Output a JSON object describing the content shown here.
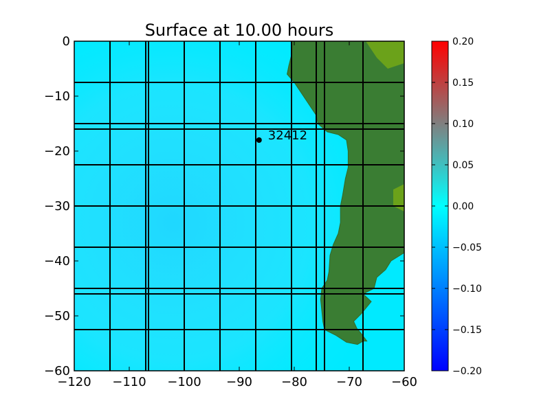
{
  "chart_data": {
    "type": "heatmap",
    "title": "Surface at 10.00 hours",
    "xlabel": "",
    "ylabel": "",
    "xlim": [
      -120,
      -60
    ],
    "ylim": [
      -60,
      0
    ],
    "x_ticks": [
      -120,
      -110,
      -100,
      -90,
      -80,
      -70,
      -60
    ],
    "y_ticks": [
      0,
      -10,
      -20,
      -30,
      -40,
      -50,
      -60
    ],
    "x_tick_labels": [
      "−120",
      "−110",
      "−100",
      "−90",
      "−80",
      "−70",
      "−60"
    ],
    "y_tick_labels": [
      "0",
      "−10",
      "−20",
      "−30",
      "−40",
      "−50",
      "−60"
    ],
    "colorbar": {
      "range": [
        -0.2,
        0.2
      ],
      "ticks": [
        0.2,
        0.15,
        0.1,
        0.05,
        0.0,
        -0.05,
        -0.1,
        -0.15,
        -0.2
      ],
      "tick_labels": [
        "0.20",
        "0.15",
        "0.10",
        "0.05",
        "0.00",
        "−0.05",
        "−0.10",
        "−0.15",
        "−0.20"
      ],
      "colors": [
        "#0000ff",
        "#00ffff",
        "#ff0000"
      ]
    },
    "colors": {
      "ocean": "#00eaff",
      "land": "#3a7d33",
      "highland": "#6ba21a",
      "grid": "#000000"
    },
    "grid_lines_x": [
      -113.5,
      -107,
      -106.5,
      -100,
      -93.5,
      -87,
      -80.5,
      -76,
      -74.5,
      -67.5
    ],
    "grid_lines_y": [
      -7.5,
      -15,
      -16,
      -22.5,
      -30,
      -37.5,
      -45,
      -46,
      -52.5
    ],
    "gauge": {
      "label": "32412",
      "x": -86.4,
      "y": -18.0
    },
    "coastline": [
      [
        -80.5,
        0
      ],
      [
        -80.5,
        -2.5
      ],
      [
        -81,
        -4.5
      ],
      [
        -81.3,
        -6
      ],
      [
        -80,
        -7.5
      ],
      [
        -79,
        -9
      ],
      [
        -78,
        -10.5
      ],
      [
        -77,
        -12
      ],
      [
        -76,
        -13.5
      ],
      [
        -75.7,
        -15
      ],
      [
        -74,
        -16.5
      ],
      [
        -72,
        -17
      ],
      [
        -70.5,
        -18
      ],
      [
        -70.2,
        -20
      ],
      [
        -70.2,
        -23
      ],
      [
        -70.7,
        -25
      ],
      [
        -71.2,
        -28
      ],
      [
        -71.6,
        -30
      ],
      [
        -71.6,
        -33
      ],
      [
        -72,
        -35
      ],
      [
        -72.9,
        -37
      ],
      [
        -73.5,
        -39
      ],
      [
        -73.7,
        -42
      ],
      [
        -74,
        -43.5
      ],
      [
        -75,
        -45
      ],
      [
        -75.2,
        -47
      ],
      [
        -75,
        -49
      ],
      [
        -74.8,
        -51
      ],
      [
        -74.5,
        -52.5
      ],
      [
        -72.5,
        -53.5
      ],
      [
        -70.5,
        -54.8
      ],
      [
        -68.5,
        -55.2
      ],
      [
        -67.5,
        -54.6
      ],
      [
        -66.8,
        -54.6
      ],
      [
        -68,
        -53
      ],
      [
        -68.6,
        -52.3
      ],
      [
        -69.2,
        -51
      ],
      [
        -67.8,
        -49.6
      ],
      [
        -66,
        -47.4
      ],
      [
        -67.5,
        -46
      ],
      [
        -65.5,
        -45
      ],
      [
        -65,
        -43
      ],
      [
        -63.4,
        -41.6
      ],
      [
        -62.4,
        -40
      ],
      [
        -60,
        -38.5
      ],
      [
        -60,
        0
      ]
    ],
    "highland_regions": [
      [
        [
          -67,
          0
        ],
        [
          -60,
          0
        ],
        [
          -60,
          -4
        ],
        [
          -63,
          -5
        ],
        [
          -65,
          -3
        ]
      ],
      [
        [
          -62,
          -27
        ],
        [
          -60,
          -26
        ],
        [
          -60,
          -31
        ],
        [
          -62,
          -30
        ]
      ]
    ]
  }
}
